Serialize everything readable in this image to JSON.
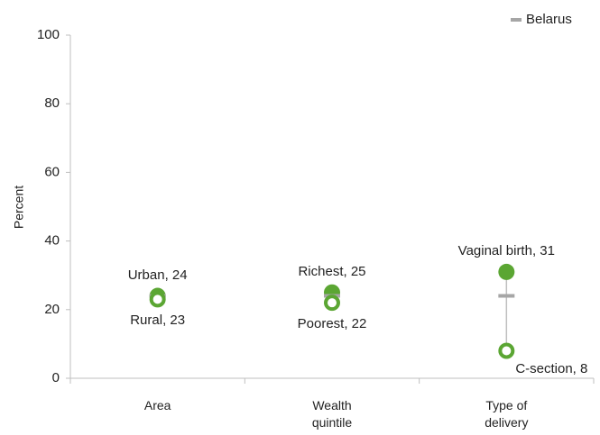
{
  "chart_data": {
    "type": "dot",
    "categories": [
      "Area",
      "Wealth quintile",
      "Type of delivery"
    ],
    "series": [
      {
        "color": "#5ba633",
        "marker": "filled",
        "values": [
          24,
          25,
          31
        ],
        "value_labels": [
          "Urban, 24",
          "Richest, 25",
          "Vaginal birth, 31"
        ]
      },
      {
        "color": "#5ba633",
        "marker": "hollow",
        "values": [
          23,
          22,
          8
        ],
        "value_labels": [
          "Rural, 23",
          "Poorest, 22",
          "C-section, 8"
        ]
      },
      {
        "name": "Belarus",
        "color": "#a6a6a6",
        "marker": "dash",
        "values": [
          24,
          24,
          24
        ]
      }
    ],
    "y_label": "Percent",
    "ylim": [
      0,
      100
    ],
    "yticks": [
      0,
      20,
      40,
      60,
      80,
      100
    ],
    "legend": "top-right"
  }
}
